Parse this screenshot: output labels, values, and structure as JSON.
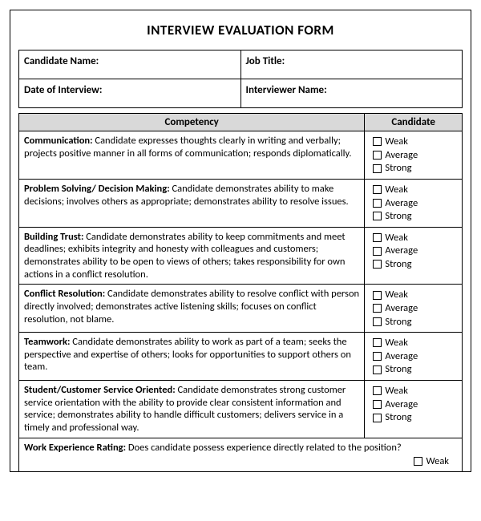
{
  "title": "INTERVIEW EVALUATION FORM",
  "header": {
    "candidate_name": "Candidate Name:",
    "job_title": "Job Title:",
    "date_of_interview": "Date of Interview:",
    "interviewer_name": "Interviewer Name:"
  },
  "columns": {
    "competency": "Competency",
    "candidate": "Candidate"
  },
  "ratings": {
    "weak": "Weak",
    "average": "Average",
    "strong": "Strong"
  },
  "competencies": [
    {
      "name": "Communication:",
      "desc": " Candidate expresses thoughts clearly in writing and verbally; projects positive manner in all forms of communication; responds diplomatically."
    },
    {
      "name": "Problem Solving/ Decision Making:",
      "desc": " Candidate demonstrates ability to make decisions; involves others as appropriate; demonstrates ability to resolve issues."
    },
    {
      "name": "Building Trust:",
      "desc": " Candidate demonstrates ability to keep commitments and meet deadlines; exhibits integrity and honesty with colleagues and customers; demonstrates ability to be open to views of others; takes responsibility for own actions in a conflict resolution."
    },
    {
      "name": "Conflict Resolution:",
      "desc": " Candidate demonstrates ability to resolve conflict with person directly involved; demonstrates active listening skills; focuses on conflict resolution, not blame."
    },
    {
      "name": "Teamwork:",
      "desc": " Candidate demonstrates ability to work as part of a team; seeks the perspective and expertise of others; looks for opportunities to support others on team."
    },
    {
      "name": "Student/Customer Service Oriented:",
      "desc": " Candidate demonstrates strong customer service orientation with the ability to provide clear consistent information and service; demonstrates ability to handle difficult customers; delivers service in a timely and professional way."
    }
  ],
  "work_experience": {
    "name": "Work Experience Rating:",
    "desc": " Does candidate possess experience directly related to the position?",
    "rating": "Weak"
  }
}
